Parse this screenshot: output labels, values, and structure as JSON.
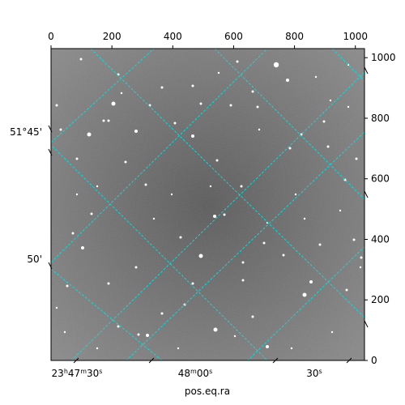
{
  "plot": {
    "colors": {
      "background": "#6e6e6e",
      "grid": "#00e5e5",
      "frame": "#000000",
      "star": "#ffffff"
    },
    "top_axis_ticks": [
      "0",
      "200",
      "400",
      "600",
      "800",
      "1000"
    ],
    "right_axis_ticks": [
      "0",
      "200",
      "400",
      "600",
      "800",
      "1000"
    ],
    "left_axis_ticks": [
      "51°45'",
      "50'"
    ],
    "bottom_axis_ticks": [
      "23h47m30s",
      "48m00s",
      "30s"
    ],
    "bottom_tick_parts": [
      {
        "sign": "",
        "deg": "23",
        "h": "h",
        "m_val": "47",
        "m": "m",
        "s_val": "30",
        "s": "s"
      },
      {
        "sign": "",
        "deg": "",
        "h": "",
        "m_val": "48",
        "m": "m",
        "s_val": "00",
        "s": "s"
      },
      {
        "sign": "",
        "deg": "",
        "h": "",
        "m_val": "",
        "m": "",
        "s_val": "30",
        "s": "s"
      }
    ],
    "xlabel": "pos.eq.ra"
  }
}
